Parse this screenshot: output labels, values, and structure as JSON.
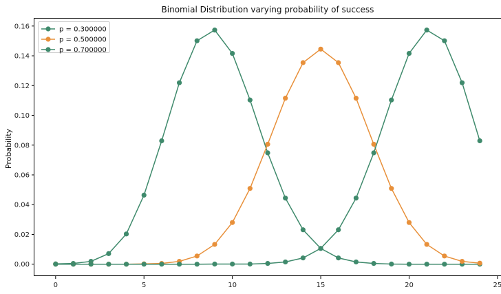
{
  "chart_data": {
    "type": "line",
    "title": "Binomial Distribution varying probability of success",
    "xlabel": "",
    "ylabel": "Probability",
    "xlim": [
      -1.2,
      25.2
    ],
    "ylim": [
      -0.008,
      0.165
    ],
    "xticks": [
      0,
      5,
      10,
      15,
      20,
      25
    ],
    "yticks": [
      0.0,
      0.02,
      0.04,
      0.06,
      0.08,
      0.1,
      0.12,
      0.14,
      0.16
    ],
    "ytick_labels": [
      "0.00",
      "0.02",
      "0.04",
      "0.06",
      "0.08",
      "0.10",
      "0.12",
      "0.14",
      "0.16"
    ],
    "grid": false,
    "legend_position": "top-left",
    "x": [
      0,
      1,
      2,
      3,
      4,
      5,
      6,
      7,
      8,
      9,
      10,
      11,
      12,
      13,
      14,
      15,
      16,
      17,
      18,
      19,
      20,
      21,
      22,
      23,
      24
    ],
    "series": [
      {
        "name": "p = 0.300000",
        "color": "#3f8a6c",
        "values": [
          0.0002,
          0.0005,
          0.0019,
          0.0071,
          0.0203,
          0.0464,
          0.0829,
          0.1219,
          0.1501,
          0.1573,
          0.1416,
          0.1103,
          0.0748,
          0.0444,
          0.0231,
          0.0106,
          0.0042,
          0.0015,
          0.0005,
          0.0001,
          0.0,
          0.0,
          0.0,
          0.0,
          0.0
        ]
      },
      {
        "name": "p = 0.500000",
        "color": "#e8903a",
        "values": [
          0.0,
          0.0,
          0.0,
          0.0,
          0.0,
          0.0002,
          0.0005,
          0.0019,
          0.0055,
          0.0133,
          0.028,
          0.0509,
          0.0806,
          0.1115,
          0.1354,
          0.1445,
          0.1354,
          0.1115,
          0.0806,
          0.0509,
          0.028,
          0.0133,
          0.0055,
          0.0019,
          0.0007
        ]
      },
      {
        "name": "p = 0.700000",
        "color": "#3f8a6c",
        "values": [
          0.0,
          0.0,
          0.0,
          0.0,
          0.0,
          0.0,
          0.0,
          0.0,
          0.0,
          0.0001,
          0.0001,
          0.0001,
          0.0005,
          0.0015,
          0.0042,
          0.0106,
          0.0231,
          0.0444,
          0.0748,
          0.1103,
          0.1416,
          0.1573,
          0.1501,
          0.1219,
          0.0829
        ]
      }
    ]
  }
}
